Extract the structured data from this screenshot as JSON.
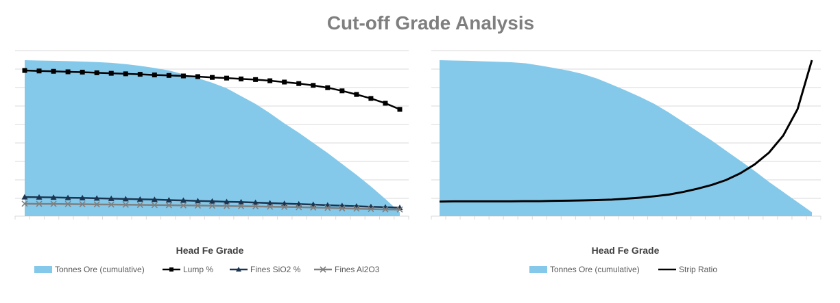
{
  "title": "Cut-off Grade Analysis",
  "colors": {
    "tonnes": "#85C9EA",
    "lump": "#000000",
    "sio2": "#1B3551",
    "al2o3": "#7F7F7F",
    "strip": "#000000",
    "grid": "#D9D9D9",
    "title": "#7F7F7F"
  },
  "chart_data": [
    {
      "type": "area",
      "xlabel": "Head Fe Grade",
      "ylabel": "",
      "grid": true,
      "legend_position": "bottom",
      "x": [
        1,
        2,
        3,
        4,
        5,
        6,
        7,
        8,
        9,
        10,
        11,
        12,
        13,
        14,
        15,
        16,
        17,
        18,
        19,
        20,
        21,
        22,
        23,
        24,
        25,
        26,
        27
      ],
      "series": [
        {
          "name": "Tonnes Ore (cumulative)",
          "kind": "area",
          "values": [
            100,
            99.8,
            99.6,
            99.4,
            99.1,
            98.8,
            98.3,
            97.5,
            96.4,
            95.0,
            93.4,
            91.0,
            88.5,
            85.5,
            82.0,
            77.0,
            72.0,
            66.0,
            59.5,
            53.5,
            47.0,
            40.5,
            33.5,
            26.5,
            19.0,
            11.0,
            2.5
          ]
        },
        {
          "name": "Lump %",
          "kind": "line",
          "marker": "square",
          "values": [
            88,
            87.7,
            87.5,
            87.2,
            87.0,
            86.6,
            86.3,
            86.0,
            85.7,
            85.3,
            85.0,
            84.7,
            84.3,
            83.8,
            83.4,
            82.9,
            82.5,
            81.8,
            81.0,
            80.1,
            79.0,
            77.6,
            75.7,
            73.5,
            71.1,
            68.2,
            64.5
          ]
        },
        {
          "name": "Fines SiO2 %",
          "kind": "line",
          "marker": "triangle",
          "values": [
            11.5,
            11.4,
            11.3,
            11.1,
            11.0,
            10.8,
            10.6,
            10.4,
            10.2,
            10.0,
            9.7,
            9.5,
            9.2,
            9.0,
            8.7,
            8.5,
            8.2,
            7.9,
            7.6,
            7.3,
            7.0,
            6.6,
            6.3,
            6.0,
            5.7,
            5.4,
            5.1
          ]
        },
        {
          "name": "Fines Al2O3",
          "kind": "line",
          "marker": "x",
          "values": [
            7.5,
            7.4,
            7.4,
            7.3,
            7.2,
            7.1,
            7.0,
            6.9,
            6.8,
            6.7,
            6.6,
            6.5,
            6.4,
            6.3,
            6.1,
            6.0,
            5.9,
            5.7,
            5.6,
            5.4,
            5.2,
            5.0,
            4.7,
            4.5,
            4.3,
            4.1,
            4.0
          ]
        }
      ]
    },
    {
      "type": "area",
      "xlabel": "Head Fe Grade",
      "ylabel": "",
      "grid": true,
      "legend_position": "bottom",
      "x": [
        1,
        2,
        3,
        4,
        5,
        6,
        7,
        8,
        9,
        10,
        11,
        12,
        13,
        14,
        15,
        16,
        17,
        18,
        19,
        20,
        21,
        22,
        23,
        24,
        25,
        26,
        27
      ],
      "series": [
        {
          "name": "Tonnes Ore (cumulative)",
          "kind": "area",
          "values": [
            100,
            99.8,
            99.6,
            99.3,
            99.0,
            98.7,
            98.0,
            96.6,
            95.0,
            93.3,
            91.2,
            88.2,
            84.5,
            80.6,
            76.5,
            72.0,
            66.5,
            60.5,
            54.5,
            48.5,
            42.0,
            35.5,
            29.0,
            22.0,
            15.5,
            9.0,
            2.5
          ]
        },
        {
          "name": "Strip Ratio",
          "kind": "line",
          "marker": "none",
          "values": [
            9.5,
            9.7,
            9.7,
            9.7,
            9.7,
            9.7,
            9.8,
            9.8,
            10.0,
            10.1,
            10.3,
            10.5,
            10.8,
            11.4,
            12.1,
            13.0,
            14.1,
            15.8,
            17.9,
            20.4,
            23.6,
            28.0,
            33.8,
            41.5,
            52.7,
            70.0,
            102.0
          ]
        }
      ]
    }
  ]
}
